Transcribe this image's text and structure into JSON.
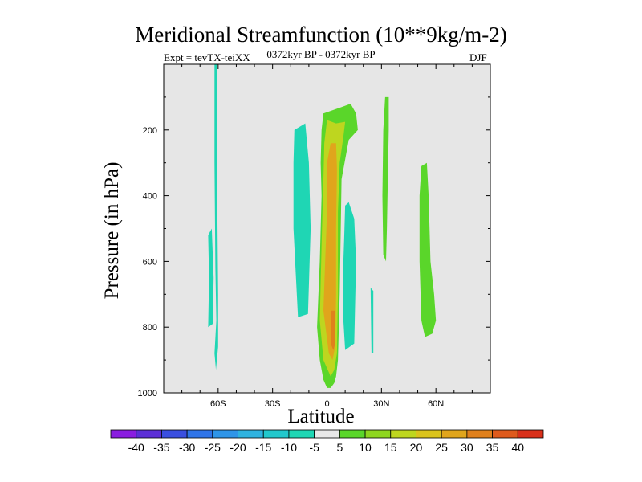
{
  "chart_data": {
    "type": "heatmap",
    "title": "Meridional Streamfunction (10**9kg/m-2)",
    "subtitle_left": "Expt = tevTX-teiXX",
    "subtitle_center": "0372kyr BP - 0372kyr BP",
    "subtitle_right": "DJF",
    "xlabel": "Latitude",
    "ylabel": "Pressure (in hPa)",
    "xlim": [
      -90,
      90
    ],
    "ylim": [
      1000,
      0
    ],
    "x_ticks": [
      {
        "value": -60,
        "label": "60S"
      },
      {
        "value": -30,
        "label": "30S"
      },
      {
        "value": 0,
        "label": "0"
      },
      {
        "value": 30,
        "label": "30N"
      },
      {
        "value": 60,
        "label": "60N"
      }
    ],
    "y_ticks": [
      {
        "value": 200,
        "label": "200"
      },
      {
        "value": 400,
        "label": "400"
      },
      {
        "value": 600,
        "label": "600"
      },
      {
        "value": 800,
        "label": "800"
      },
      {
        "value": 1000,
        "label": "1000"
      }
    ],
    "colorbar": {
      "labels": [
        "-40",
        "-35",
        "-30",
        "-25",
        "-20",
        "-15",
        "-10",
        "-5",
        "5",
        "10",
        "15",
        "20",
        "25",
        "30",
        "35",
        "40"
      ],
      "colors": [
        "#8a1de0",
        "#5c2fd6",
        "#3a4fe0",
        "#2f74e8",
        "#2f95e8",
        "#2fb3e0",
        "#22c8cc",
        "#1fd6b4",
        "#e8e8e8",
        "#5ad62a",
        "#8ed61f",
        "#bed61f",
        "#dac31c",
        "#e0a51c",
        "#e0801c",
        "#de5a1c",
        "#d9301a"
      ]
    },
    "regions": [
      {
        "name": "sh-polar-narrow",
        "level": -5,
        "points": [
          [
            -62,
            0
          ],
          [
            -60.5,
            0
          ],
          [
            -60.5,
            400
          ],
          [
            -60,
            700
          ],
          [
            -60,
            860
          ],
          [
            -61.2,
            930
          ],
          [
            -62,
            880
          ],
          [
            -61,
            780
          ],
          [
            -61.5,
            620
          ],
          [
            -62,
            300
          ]
        ]
      },
      {
        "name": "sh-polar-lower",
        "level": -5,
        "points": [
          [
            -65.5,
            520
          ],
          [
            -63.5,
            500
          ],
          [
            -62.5,
            650
          ],
          [
            -63,
            790
          ],
          [
            -65.5,
            800
          ],
          [
            -65,
            650
          ]
        ]
      },
      {
        "name": "sh-subtropic-band",
        "level": -5,
        "points": [
          [
            -18,
            200
          ],
          [
            -12,
            180
          ],
          [
            -10,
            300
          ],
          [
            -9,
            500
          ],
          [
            -10.5,
            760
          ],
          [
            -16,
            770
          ],
          [
            -18.5,
            500
          ],
          [
            -18.5,
            300
          ]
        ]
      },
      {
        "name": "hadley-green",
        "level": 5,
        "points": [
          [
            -3,
            200
          ],
          [
            -2,
            150
          ],
          [
            8,
            130
          ],
          [
            13,
            120
          ],
          [
            16,
            150
          ],
          [
            17,
            200
          ],
          [
            12,
            230
          ],
          [
            8,
            350
          ],
          [
            7,
            700
          ],
          [
            6,
            900
          ],
          [
            5,
            950
          ],
          [
            4,
            970
          ],
          [
            2,
            985
          ],
          [
            0,
            985
          ],
          [
            -2,
            960
          ],
          [
            -4,
            900
          ],
          [
            -5.5,
            800
          ],
          [
            -4,
            600
          ],
          [
            -3,
            400
          ],
          [
            -3.5,
            300
          ]
        ]
      },
      {
        "name": "hadley-yellow",
        "level": 15,
        "points": [
          [
            -1.5,
            240
          ],
          [
            0,
            170
          ],
          [
            5,
            180
          ],
          [
            10,
            175
          ],
          [
            9,
            220
          ],
          [
            7,
            300
          ],
          [
            6,
            450
          ],
          [
            6,
            700
          ],
          [
            5.5,
            880
          ],
          [
            4,
            930
          ],
          [
            2,
            950
          ],
          [
            -2,
            900
          ],
          [
            -4,
            780
          ],
          [
            -3,
            550
          ],
          [
            -2,
            350
          ]
        ]
      },
      {
        "name": "hadley-orange",
        "level": 25,
        "points": [
          [
            0,
            300
          ],
          [
            2,
            240
          ],
          [
            5,
            240
          ],
          [
            5.5,
            320
          ],
          [
            5,
            500
          ],
          [
            5,
            700
          ],
          [
            4.5,
            860
          ],
          [
            3,
            900
          ],
          [
            1,
            880
          ],
          [
            -2,
            750
          ],
          [
            -1,
            600
          ],
          [
            0,
            450
          ]
        ]
      },
      {
        "name": "hadley-core",
        "level": 30,
        "points": [
          [
            2,
            750
          ],
          [
            4.5,
            750
          ],
          [
            4.5,
            850
          ],
          [
            3.5,
            870
          ],
          [
            2,
            850
          ]
        ]
      },
      {
        "name": "nh-tropic-cyan",
        "level": -5,
        "points": [
          [
            10,
            430
          ],
          [
            12,
            420
          ],
          [
            15,
            470
          ],
          [
            16,
            600
          ],
          [
            15,
            850
          ],
          [
            10,
            870
          ],
          [
            9,
            780
          ],
          [
            9,
            600
          ],
          [
            9.5,
            520
          ]
        ]
      },
      {
        "name": "nh-streak-cyan",
        "level": -5,
        "points": [
          [
            24,
            680
          ],
          [
            25.5,
            690
          ],
          [
            25.5,
            880
          ],
          [
            24.5,
            880
          ]
        ]
      },
      {
        "name": "nh-streak-green",
        "level": 5,
        "points": [
          [
            32,
            100
          ],
          [
            34,
            100
          ],
          [
            34,
            200
          ],
          [
            33,
            500
          ],
          [
            32.5,
            600
          ],
          [
            31,
            580
          ],
          [
            30.5,
            400
          ],
          [
            31,
            200
          ]
        ]
      },
      {
        "name": "nh-extra-green",
        "level": 5,
        "points": [
          [
            52,
            310
          ],
          [
            55,
            300
          ],
          [
            56,
            400
          ],
          [
            57,
            600
          ],
          [
            59,
            700
          ],
          [
            60,
            780
          ],
          [
            58,
            820
          ],
          [
            54,
            830
          ],
          [
            52,
            780
          ],
          [
            51,
            600
          ],
          [
            51,
            400
          ]
        ]
      }
    ]
  }
}
